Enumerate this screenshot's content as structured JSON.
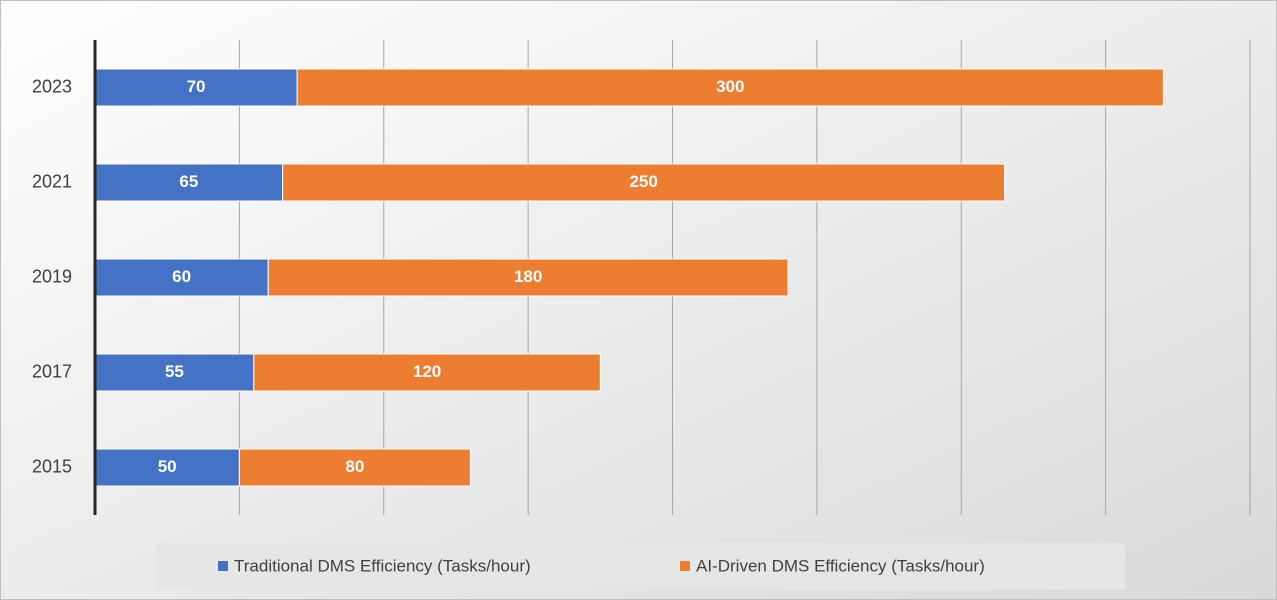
{
  "chart_data": {
    "type": "stacked-bar-horizontal",
    "categories": [
      "2015",
      "2017",
      "2019",
      "2021",
      "2023"
    ],
    "series": [
      {
        "name": "Traditional DMS Efficiency (Tasks/hour)",
        "color": "#4472c4",
        "values": [
          50,
          55,
          60,
          65,
          70
        ]
      },
      {
        "name": "AI-Driven DMS Efficiency (Tasks/hour)",
        "color": "#ed7d31",
        "values": [
          80,
          120,
          180,
          250,
          300
        ]
      }
    ],
    "xlim": [
      0,
      400
    ],
    "xticks": [
      0,
      50,
      100,
      150,
      200,
      250,
      300,
      350,
      400
    ],
    "grid": true,
    "legend": "bottom"
  }
}
